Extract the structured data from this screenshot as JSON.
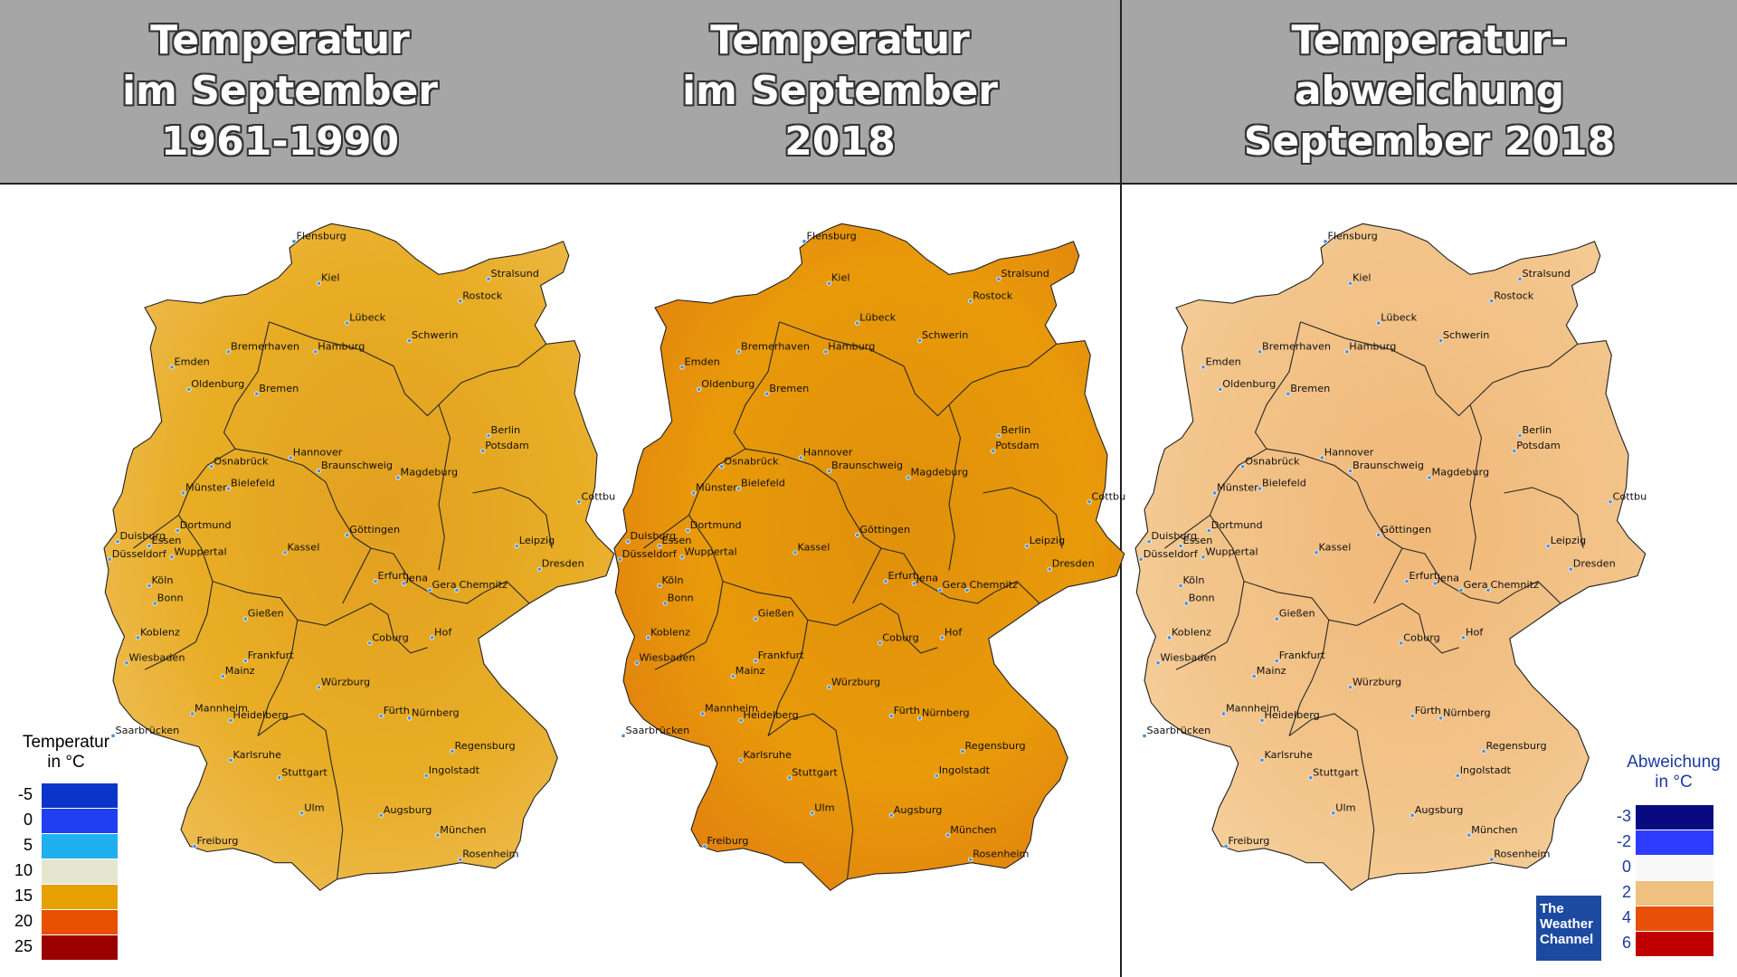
{
  "panels": [
    {
      "title_lines": [
        "Temperatur",
        "im September",
        "1961-1990"
      ]
    },
    {
      "title_lines": [
        "Temperatur",
        "im September",
        "2018"
      ]
    },
    {
      "title_lines": [
        "Temperatur-",
        "abweichung",
        "September 2018"
      ]
    }
  ],
  "cities": [
    "Flensburg",
    "Kiel",
    "Stralsund",
    "Rostock",
    "Lübeck",
    "Schwerin",
    "Emden",
    "Bremerhaven",
    "Hamburg",
    "Oldenburg",
    "Bremen",
    "Berlin",
    "Potsdam",
    "Hannover",
    "Osnabrück",
    "Braunschweig",
    "Magdeburg",
    "Münster",
    "Bielefeld",
    "Cottbus",
    "Duisburg",
    "Dortmund",
    "Göttingen",
    "Essen",
    "Leipzig",
    "Düsseldorf",
    "Wuppertal",
    "Kassel",
    "Dresden",
    "Köln",
    "Erfurt",
    "Jena",
    "Gera",
    "Chemnitz",
    "Bonn",
    "Gießen",
    "Koblenz",
    "Coburg",
    "Hof",
    "Wiesbaden",
    "Frankfurt",
    "Mainz",
    "Würzburg",
    "Mannheim",
    "Heidelberg",
    "Fürth",
    "Nürnberg",
    "Saarbrücken",
    "Karlsruhe",
    "Regensburg",
    "Stuttgart",
    "Ingolstadt",
    "Ulm",
    "Augsburg",
    "Freiburg",
    "München",
    "Rosenheim"
  ],
  "legend_temp": {
    "title_lines": [
      "Temperatur",
      "in °C"
    ],
    "labels": [
      "-5",
      "0",
      "5",
      "10",
      "15",
      "20",
      "25"
    ],
    "colors": [
      "#0b35c8",
      "#1f3ff0",
      "#1fb0f0",
      "#e6e6d0",
      "#e6a000",
      "#e65000",
      "#9b0000"
    ]
  },
  "legend_dev": {
    "title_lines": [
      "Abweichung",
      "in °C"
    ],
    "labels": [
      "-3",
      "-2",
      "0",
      "2",
      "4",
      "6"
    ],
    "colors": [
      "#0a0a80",
      "#2e3cff",
      "#f8f8f8",
      "#f0c080",
      "#e8500a",
      "#c00000"
    ]
  },
  "brand": {
    "lines": [
      "The",
      "Weather",
      "Channel"
    ]
  },
  "map_colors": {
    "base_1961": "#e8ad25",
    "base_2018": "#e89a0a",
    "base_dev": "#f2c48a"
  }
}
